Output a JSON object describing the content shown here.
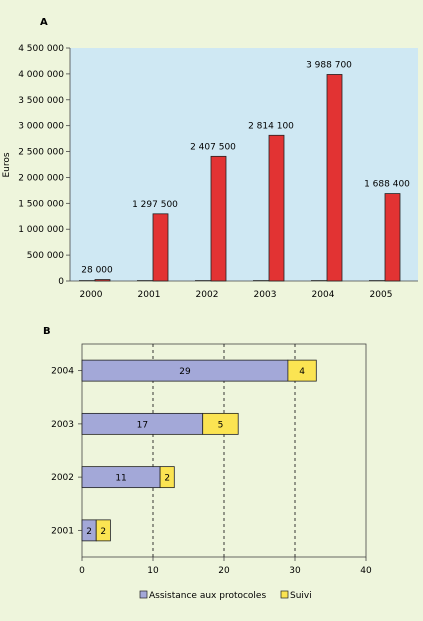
{
  "colors": {
    "page_bg": "#eef5dc",
    "plot_a_bg": "#cfe8f3",
    "bar_red": "#e23333",
    "bar_blue": "#a3a8d8",
    "bar_yellow": "#fbe452"
  },
  "chart_data": [
    {
      "panel": "A",
      "type": "bar",
      "ylabel": "Euros",
      "categories": [
        "2000",
        "2001",
        "2002",
        "2003",
        "2004",
        "2005"
      ],
      "values": [
        28000,
        1297500,
        2407500,
        2814100,
        3988700,
        1688400
      ],
      "value_labels": [
        "28 000",
        "1 297 500",
        "2 407 500",
        "2 814 100",
        "3 988 700",
        "1 688 400"
      ],
      "ylim": [
        0,
        4500000
      ],
      "yticks": [
        0,
        500000,
        1000000,
        1500000,
        2000000,
        2500000,
        3000000,
        3500000,
        4000000,
        4500000
      ],
      "ytick_labels": [
        "0",
        "500 000",
        "1 000 000",
        "1 500 000",
        "2 000 000",
        "2 500 000",
        "3 000 000",
        "3 500 000",
        "4 000 000",
        "4 500 000"
      ],
      "grid": false
    },
    {
      "panel": "B",
      "type": "bar",
      "orientation": "horizontal",
      "stacked": true,
      "categories": [
        "2004",
        "2003",
        "2002",
        "2001"
      ],
      "series": [
        {
          "name": "Assistance aux protocoles",
          "values": [
            29,
            17,
            11,
            2
          ]
        },
        {
          "name": "Suivi",
          "values": [
            4,
            5,
            2,
            2
          ]
        }
      ],
      "xlim": [
        0,
        40
      ],
      "xticks": [
        0,
        10,
        20,
        30,
        40
      ],
      "xtick_labels": [
        "0",
        "10",
        "20",
        "30",
        "40"
      ],
      "grid": "vertical dashed",
      "legend": "bottom"
    }
  ]
}
